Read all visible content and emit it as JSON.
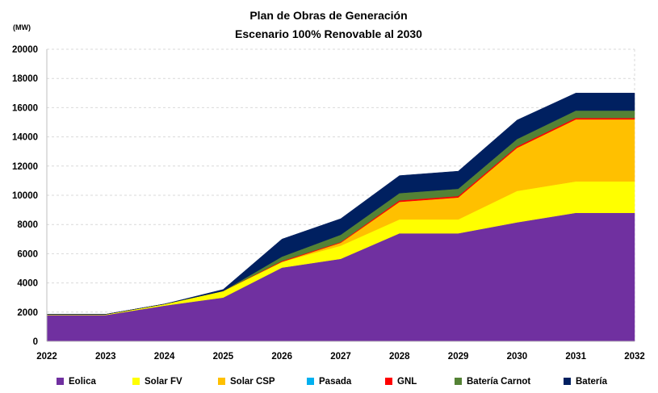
{
  "chart_data": {
    "type": "area",
    "stacked": true,
    "title": "Plan de Obras de Generación",
    "subtitle": "Escenario 100% Renovable al 2030",
    "unit_label": "(MW)",
    "x": [
      "2022",
      "2023",
      "2024",
      "2025",
      "2026",
      "2027",
      "2028",
      "2029",
      "2030",
      "2031",
      "2032"
    ],
    "ylim": [
      0,
      20000
    ],
    "yticks": [
      "0",
      "2000",
      "4000",
      "6000",
      "8000",
      "10000",
      "12000",
      "14000",
      "16000",
      "18000",
      "20000"
    ],
    "grid": true,
    "legend_position": "bottom",
    "series": [
      {
        "name": "Eolica",
        "color": "#7030A0",
        "values": [
          1800,
          1800,
          2450,
          3000,
          5050,
          5650,
          7400,
          7400,
          8150,
          8800,
          8800
        ]
      },
      {
        "name": "Solar FV",
        "color": "#FFFF00",
        "values": [
          50,
          50,
          100,
          450,
          400,
          900,
          950,
          950,
          2150,
          2150,
          2150
        ]
      },
      {
        "name": "Solar CSP",
        "color": "#FFC000",
        "values": [
          0,
          0,
          0,
          0,
          0,
          200,
          1200,
          1500,
          2950,
          4250,
          4250
        ]
      },
      {
        "name": "Pasada",
        "color": "#00B0F0",
        "values": [
          0,
          0,
          0,
          0,
          0,
          0,
          0,
          0,
          0,
          0,
          0
        ]
      },
      {
        "name": "GNL",
        "color": "#FF0000",
        "values": [
          0,
          0,
          0,
          0,
          50,
          50,
          100,
          100,
          100,
          100,
          100
        ]
      },
      {
        "name": "Batería Carnot",
        "color": "#548235",
        "values": [
          0,
          0,
          0,
          0,
          300,
          500,
          500,
          500,
          500,
          500,
          500
        ]
      },
      {
        "name": "Batería",
        "color": "#002060",
        "values": [
          0,
          0,
          0,
          100,
          1200,
          1100,
          1200,
          1200,
          1300,
          1200,
          1200
        ]
      }
    ]
  }
}
